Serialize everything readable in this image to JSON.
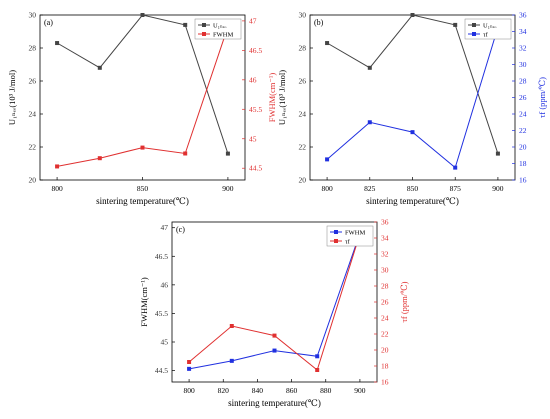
{
  "chart_data": [
    {
      "panel_label": "(a)",
      "type": "line",
      "xlabel": "sintering temperature(℃)",
      "x": [
        800,
        825,
        850,
        875,
        900
      ],
      "x_ticks": [
        800,
        850,
        900
      ],
      "xlim": [
        790,
        910
      ],
      "left_axis": {
        "label": "U₁ₙₑₒ(10³ J/mol)",
        "ylim": [
          20,
          30
        ],
        "ticks": [
          20,
          22,
          24,
          26,
          28,
          30
        ],
        "color": "#333333"
      },
      "right_axis": {
        "label": "FWHM(cm⁻¹)",
        "ylim": [
          44.3,
          47.1
        ],
        "ticks": [
          44.5,
          45.0,
          45.5,
          46.0,
          46.5,
          47.0
        ],
        "color": "#e03030"
      },
      "series": [
        {
          "name": "U₁ₙₑₒ",
          "axis": "left",
          "color": "#444444",
          "marker": "square",
          "values": [
            28.3,
            26.8,
            30.0,
            29.4,
            21.6
          ]
        },
        {
          "name": "FWHM",
          "axis": "right",
          "color": "#e03030",
          "marker": "square",
          "values": [
            44.53,
            44.67,
            44.85,
            44.75,
            46.9
          ]
        }
      ],
      "legend": "top-right"
    },
    {
      "panel_label": "(b)",
      "type": "line",
      "xlabel": "sintering temperature(℃)",
      "x": [
        800,
        825,
        850,
        875,
        900
      ],
      "x_ticks": [
        800,
        825,
        850,
        875,
        900
      ],
      "xlim": [
        790,
        910
      ],
      "left_axis": {
        "label": "U₁ₙₑₒ(10³ J/mol)",
        "ylim": [
          20,
          30
        ],
        "ticks": [
          20,
          22,
          24,
          26,
          28,
          30
        ],
        "color": "#333333"
      },
      "right_axis": {
        "label": "τf (ppm/℃)",
        "ylim": [
          16,
          36
        ],
        "ticks": [
          16,
          18,
          20,
          22,
          24,
          26,
          28,
          30,
          32,
          34,
          36
        ],
        "color": "#2030e0"
      },
      "series": [
        {
          "name": "U₁ₙₑₒ",
          "axis": "left",
          "color": "#444444",
          "marker": "square",
          "values": [
            28.3,
            26.8,
            30.0,
            29.4,
            21.6
          ]
        },
        {
          "name": "τf",
          "axis": "right",
          "color": "#2030e0",
          "marker": "square",
          "values": [
            18.5,
            23.0,
            21.8,
            17.5,
            34.5
          ]
        }
      ],
      "legend": "top-right"
    },
    {
      "panel_label": "(c)",
      "type": "line",
      "xlabel": "sintering temperature(℃)",
      "x": [
        800,
        825,
        850,
        875,
        900
      ],
      "x_ticks": [
        800,
        820,
        840,
        860,
        880,
        900
      ],
      "xlim": [
        790,
        910
      ],
      "left_axis": {
        "label": "FWHM(cm⁻¹)",
        "ylim": [
          44.3,
          47.1
        ],
        "ticks": [
          44.5,
          45.0,
          45.5,
          46.0,
          46.5,
          47.0
        ],
        "color": "#333333"
      },
      "right_axis": {
        "label": "τf (ppm/℃)",
        "ylim": [
          16,
          36
        ],
        "ticks": [
          16,
          18,
          20,
          22,
          24,
          26,
          28,
          30,
          32,
          34,
          36
        ],
        "color": "#e03030"
      },
      "series": [
        {
          "name": "FWHM",
          "axis": "left",
          "color": "#2030e0",
          "marker": "square",
          "values": [
            44.53,
            44.67,
            44.85,
            44.75,
            46.9
          ]
        },
        {
          "name": "τf",
          "axis": "right",
          "color": "#e03030",
          "marker": "square",
          "values": [
            18.5,
            23.0,
            21.8,
            17.5,
            34.5
          ]
        }
      ],
      "legend": "top-right"
    }
  ]
}
